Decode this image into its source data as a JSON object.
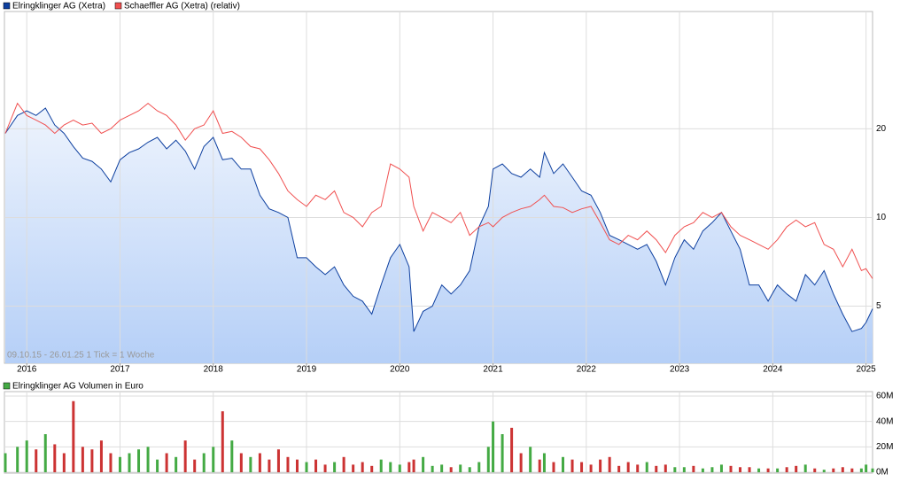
{
  "chart_data": [
    {
      "type": "line",
      "log_scale": true,
      "grid": true,
      "area_under_first": true,
      "annotation": "09.10.15 - 26.01.25   1 Tick = 1 Woche",
      "x": [
        2015.77,
        2015.9,
        2016.0,
        2016.1,
        2016.2,
        2016.3,
        2016.4,
        2016.5,
        2016.6,
        2016.7,
        2016.8,
        2016.9,
        2017.0,
        2017.1,
        2017.2,
        2017.3,
        2017.4,
        2017.5,
        2017.6,
        2017.7,
        2017.8,
        2017.9,
        2018.0,
        2018.1,
        2018.2,
        2018.3,
        2018.4,
        2018.5,
        2018.6,
        2018.7,
        2018.8,
        2018.9,
        2019.0,
        2019.1,
        2019.2,
        2019.3,
        2019.4,
        2019.5,
        2019.6,
        2019.7,
        2019.8,
        2019.9,
        2020.0,
        2020.1,
        2020.15,
        2020.25,
        2020.35,
        2020.45,
        2020.55,
        2020.65,
        2020.75,
        2020.85,
        2020.95,
        2021.0,
        2021.1,
        2021.2,
        2021.3,
        2021.4,
        2021.5,
        2021.55,
        2021.65,
        2021.75,
        2021.85,
        2021.95,
        2022.05,
        2022.15,
        2022.25,
        2022.35,
        2022.45,
        2022.55,
        2022.65,
        2022.75,
        2022.85,
        2022.95,
        2023.05,
        2023.15,
        2023.25,
        2023.35,
        2023.45,
        2023.55,
        2023.65,
        2023.75,
        2023.85,
        2023.95,
        2024.05,
        2024.15,
        2024.25,
        2024.35,
        2024.45,
        2024.55,
        2024.65,
        2024.75,
        2024.85,
        2024.95,
        2025.0,
        2025.07
      ],
      "xlim": [
        2015.77,
        2025.07
      ],
      "xticks": [
        2016,
        2017,
        2018,
        2019,
        2020,
        2021,
        2022,
        2023,
        2024,
        2025
      ],
      "ylim": [
        3.2,
        50
      ],
      "yticks": [
        5,
        10,
        20
      ],
      "series": [
        {
          "name": "Elringklinger AG (Xetra)",
          "color": "#0d3f9f",
          "values": [
            19.3,
            22.2,
            23.0,
            22.2,
            23.5,
            20.6,
            19.3,
            17.4,
            15.9,
            15.5,
            14.6,
            13.2,
            15.7,
            16.6,
            17.1,
            18.0,
            18.7,
            17.1,
            18.3,
            16.8,
            14.6,
            17.4,
            18.7,
            15.7,
            15.9,
            14.6,
            14.6,
            11.9,
            10.7,
            10.4,
            10.0,
            7.3,
            7.3,
            6.8,
            6.4,
            6.8,
            5.9,
            5.4,
            5.2,
            4.7,
            5.9,
            7.3,
            8.1,
            6.8,
            4.1,
            4.8,
            5.0,
            5.9,
            5.5,
            5.9,
            6.6,
            9.3,
            10.9,
            14.6,
            15.2,
            14.1,
            13.7,
            14.6,
            13.7,
            16.6,
            14.1,
            15.2,
            13.7,
            12.3,
            11.9,
            10.4,
            8.7,
            8.4,
            8.1,
            7.8,
            8.1,
            7.1,
            5.9,
            7.3,
            8.4,
            7.8,
            9.0,
            9.6,
            10.4,
            9.0,
            7.8,
            5.9,
            5.9,
            5.2,
            5.9,
            5.5,
            5.2,
            6.4,
            5.9,
            6.6,
            5.5,
            4.7,
            4.1,
            4.2,
            4.4,
            4.9
          ]
        },
        {
          "name": "Schaeffler AG (Xetra) (relativ)",
          "color": "#f05050",
          "values": [
            19.3,
            24.4,
            22.2,
            21.4,
            20.6,
            19.3,
            20.6,
            21.4,
            20.6,
            20.9,
            19.3,
            20.0,
            21.4,
            22.2,
            23.0,
            24.4,
            23.0,
            22.2,
            20.6,
            18.3,
            20.0,
            20.6,
            23.0,
            19.3,
            19.6,
            18.7,
            17.4,
            17.1,
            15.7,
            14.1,
            12.3,
            11.5,
            10.9,
            11.9,
            11.5,
            12.3,
            10.4,
            10.0,
            9.3,
            10.4,
            10.9,
            15.2,
            14.6,
            13.7,
            10.9,
            9.0,
            10.4,
            10.0,
            9.6,
            10.4,
            8.7,
            9.3,
            9.6,
            9.3,
            10.0,
            10.4,
            10.7,
            10.9,
            11.5,
            11.9,
            10.9,
            10.8,
            10.4,
            10.7,
            10.9,
            9.6,
            8.4,
            8.1,
            8.7,
            8.4,
            9.0,
            8.4,
            7.6,
            8.7,
            9.3,
            9.6,
            10.4,
            10.0,
            10.4,
            9.3,
            8.7,
            8.4,
            8.1,
            7.8,
            8.4,
            9.3,
            9.8,
            9.3,
            9.6,
            8.1,
            7.8,
            6.8,
            7.8,
            6.6,
            6.7,
            6.2
          ]
        }
      ]
    },
    {
      "type": "bar",
      "grid": true,
      "up_color": "#44aa44",
      "down_color": "#cc3333",
      "series": [
        {
          "name": "Elringklinger AG Volumen in Euro",
          "color": "#44aa44",
          "values": [
            15000000,
            20000000,
            25000000,
            18000000,
            30000000,
            22000000,
            15000000,
            56000000,
            20000000,
            18000000,
            25000000,
            15000000,
            12000000,
            15000000,
            18000000,
            20000000,
            10000000,
            15000000,
            12000000,
            25000000,
            10000000,
            15000000,
            20000000,
            48000000,
            25000000,
            15000000,
            12000000,
            15000000,
            10000000,
            18000000,
            12000000,
            10000000,
            8000000,
            10000000,
            6000000,
            8000000,
            12000000,
            6000000,
            8000000,
            5000000,
            10000000,
            8000000,
            6000000,
            8000000,
            10000000,
            12000000,
            5000000,
            6000000,
            4000000,
            6000000,
            4000000,
            8000000,
            20000000,
            40000000,
            30000000,
            35000000,
            15000000,
            20000000,
            10000000,
            15000000,
            8000000,
            12000000,
            10000000,
            8000000,
            6000000,
            10000000,
            12000000,
            5000000,
            8000000,
            6000000,
            8000000,
            5000000,
            6000000,
            4000000,
            4000000,
            5000000,
            3000000,
            4000000,
            6000000,
            5000000,
            4000000,
            4000000,
            3000000,
            3000000,
            3000000,
            4000000,
            5000000,
            6000000,
            3000000,
            2000000,
            3000000,
            4000000,
            3000000,
            3000000,
            6000000,
            3000000
          ]
        }
      ],
      "x": [
        2015.77,
        2015.9,
        2016.0,
        2016.1,
        2016.2,
        2016.3,
        2016.4,
        2016.5,
        2016.6,
        2016.7,
        2016.8,
        2016.9,
        2017.0,
        2017.1,
        2017.2,
        2017.3,
        2017.4,
        2017.5,
        2017.6,
        2017.7,
        2017.8,
        2017.9,
        2018.0,
        2018.1,
        2018.2,
        2018.3,
        2018.4,
        2018.5,
        2018.6,
        2018.7,
        2018.8,
        2018.9,
        2019.0,
        2019.1,
        2019.2,
        2019.3,
        2019.4,
        2019.5,
        2019.6,
        2019.7,
        2019.8,
        2019.9,
        2020.0,
        2020.1,
        2020.15,
        2020.25,
        2020.35,
        2020.45,
        2020.55,
        2020.65,
        2020.75,
        2020.85,
        2020.95,
        2021.0,
        2021.1,
        2021.2,
        2021.3,
        2021.4,
        2021.5,
        2021.55,
        2021.65,
        2021.75,
        2021.85,
        2021.95,
        2022.05,
        2022.15,
        2022.25,
        2022.35,
        2022.45,
        2022.55,
        2022.65,
        2022.75,
        2022.85,
        2022.95,
        2023.05,
        2023.15,
        2023.25,
        2023.35,
        2023.45,
        2023.55,
        2023.65,
        2023.75,
        2023.85,
        2023.95,
        2024.05,
        2024.15,
        2024.25,
        2024.35,
        2024.45,
        2024.55,
        2024.65,
        2024.75,
        2024.85,
        2024.95,
        2025.0,
        2025.07
      ],
      "xlim": [
        2015.77,
        2025.07
      ],
      "ylim": [
        0,
        60000000
      ],
      "yticks": [
        {
          "value": 0,
          "label": "0M"
        },
        {
          "value": 20000000,
          "label": "20M"
        },
        {
          "value": 40000000,
          "label": "40M"
        },
        {
          "value": 60000000,
          "label": "60M"
        }
      ]
    }
  ]
}
